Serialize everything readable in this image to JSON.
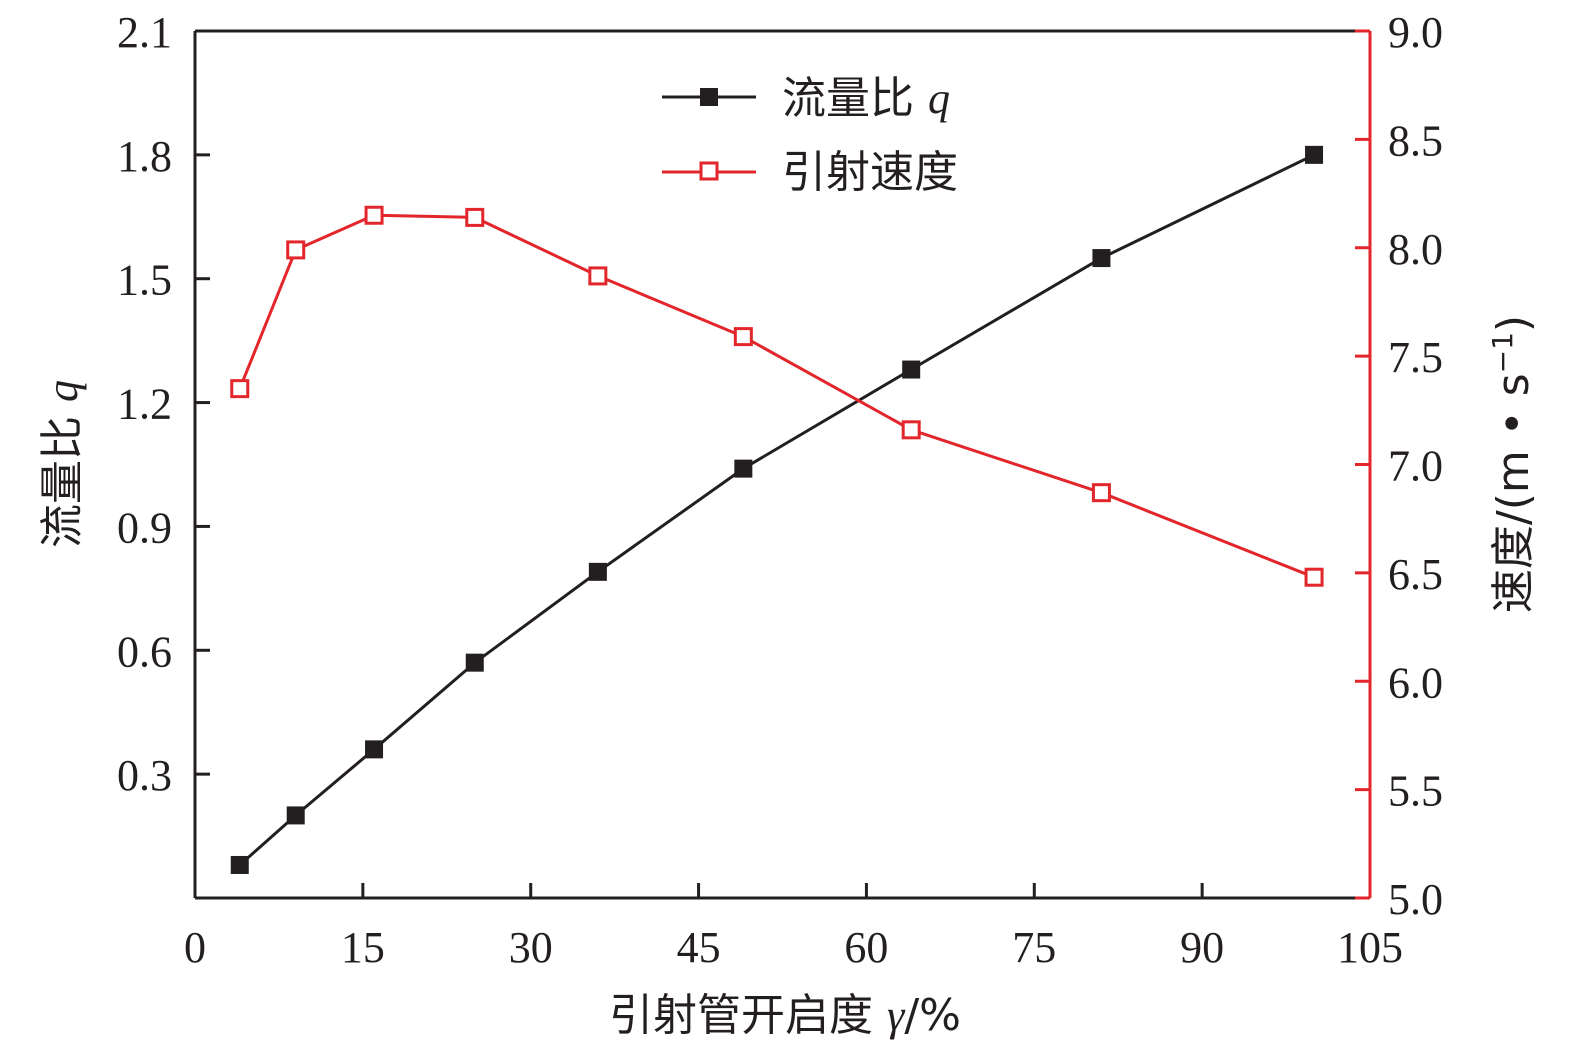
{
  "chart_data": {
    "type": "line",
    "x_axis": {
      "label_main": "引射管开启度 ",
      "label_symbol": "γ",
      "label_unit": "/%",
      "ticks": [
        "0",
        "15",
        "30",
        "45",
        "60",
        "75",
        "90",
        "105"
      ],
      "tick_values": [
        0,
        15,
        30,
        45,
        60,
        75,
        90,
        105
      ],
      "range": [
        0,
        105
      ]
    },
    "y_left": {
      "label_main": "流量比 ",
      "label_symbol": "q",
      "ticks": [
        "0.3",
        "0.6",
        "0.9",
        "1.2",
        "1.5",
        "1.8",
        "2.1"
      ],
      "tick_values": [
        0.3,
        0.6,
        0.9,
        1.2,
        1.5,
        1.8,
        2.1
      ],
      "range": [
        0.0,
        2.1
      ]
    },
    "y_right": {
      "label_main": "速度/(m • s",
      "label_sup": "−1",
      "label_close": ")",
      "ticks": [
        "5.0",
        "5.5",
        "6.0",
        "6.5",
        "7.0",
        "7.5",
        "8.0",
        "8.5",
        "9.0"
      ],
      "tick_values": [
        5.0,
        5.5,
        6.0,
        6.5,
        7.0,
        7.5,
        8.0,
        8.5,
        9.0
      ],
      "range": [
        5.0,
        9.0
      ],
      "color": "#e2262b"
    },
    "x": [
      4,
      9,
      16,
      25,
      36,
      49,
      64,
      81,
      100
    ],
    "series": [
      {
        "name_main": "流量比 ",
        "name_symbol": "q",
        "axis": "left",
        "marker": "filled-square",
        "color": "#231f20",
        "values": [
          0.08,
          0.2,
          0.36,
          0.57,
          0.79,
          1.04,
          1.28,
          1.55,
          1.8
        ]
      },
      {
        "name_main": "引射速度",
        "axis": "right",
        "marker": "open-square",
        "color": "#e2262b",
        "values": [
          7.35,
          7.99,
          8.15,
          8.14,
          7.87,
          7.59,
          7.16,
          6.87,
          6.48
        ]
      }
    ],
    "legend_position": "top-center",
    "grid": false
  }
}
